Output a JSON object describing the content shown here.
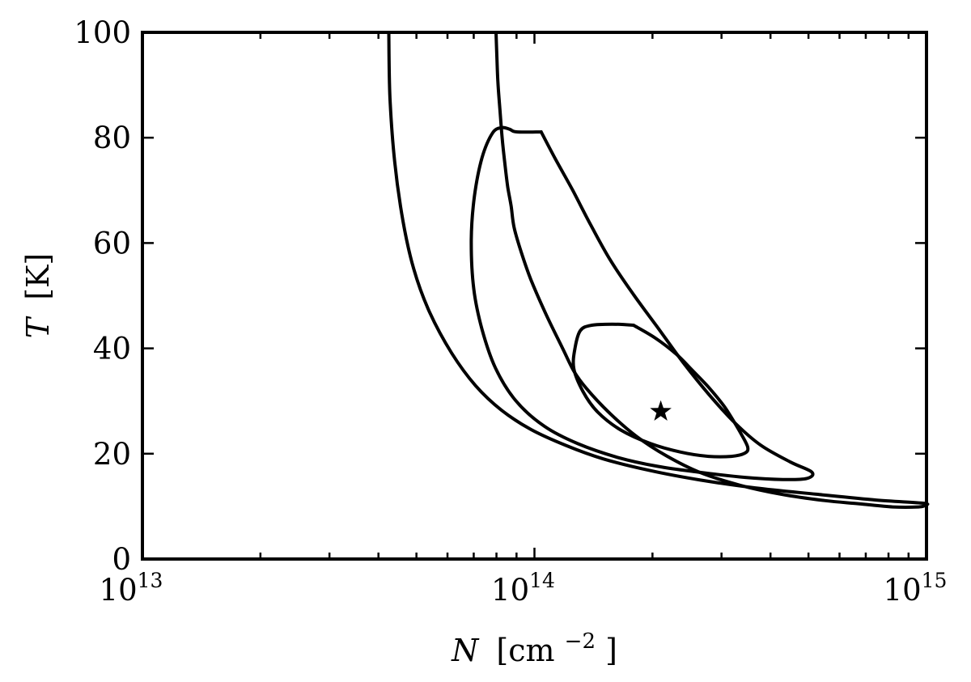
{
  "chart_data": {
    "type": "contour",
    "title": "",
    "x_axis": {
      "scale": "log",
      "range": [
        10000000000000.0,
        1000000000000000.0
      ],
      "tick_labels": [
        {
          "value": 10000000000000.0,
          "base": "10",
          "exponent": "13"
        },
        {
          "value": 100000000000000.0,
          "base": "10",
          "exponent": "14"
        },
        {
          "value": 1000000000000000.0,
          "base": "10",
          "exponent": "15"
        }
      ],
      "label": {
        "symbol": "N",
        "unit": "[cm",
        "unit_exponent": "−2",
        "unit_close": "]"
      }
    },
    "y_axis": {
      "scale": "linear",
      "range": [
        0,
        100
      ],
      "ticks": [
        0,
        20,
        40,
        60,
        80,
        100
      ],
      "tick_labels": [
        "0",
        "20",
        "40",
        "60",
        "80",
        "100"
      ],
      "label": {
        "symbol": "T",
        "unit": "[K]"
      }
    },
    "grid": false,
    "legend": "none",
    "line_color": "#000000",
    "series": [
      {
        "type": "contour",
        "points": [
          [
            179000000000000.0,
            44.4
          ],
          [
            203000000000000.0,
            42.0
          ],
          [
            230000000000000.0,
            38.9
          ],
          [
            253000000000000.0,
            35.8
          ],
          [
            279000000000000.0,
            32.5
          ],
          [
            304000000000000.0,
            29.1
          ],
          [
            322000000000000.0,
            26.2
          ],
          [
            337000000000000.0,
            23.7
          ],
          [
            350000000000000.0,
            21.2
          ],
          [
            344000000000000.0,
            20.1
          ],
          [
            318000000000000.0,
            19.5
          ],
          [
            278000000000000.0,
            19.5
          ],
          [
            236000000000000.0,
            20.3
          ],
          [
            198000000000000.0,
            21.9
          ],
          [
            166000000000000.0,
            24.5
          ],
          [
            145000000000000.0,
            27.9
          ],
          [
            133000000000000.0,
            31.8
          ],
          [
            126000000000000.0,
            36.2
          ],
          [
            127000000000000.0,
            40.2
          ],
          [
            131000000000000.0,
            43.4
          ],
          [
            140000000000000.0,
            44.4
          ],
          [
            158000000000000.0,
            44.6
          ],
          [
            179000000000000.0,
            44.4
          ]
        ]
      },
      {
        "type": "contour",
        "points": [
          [
            104000000000000.0,
            81.1
          ],
          [
            113000000000000.0,
            76.0
          ],
          [
            125000000000000.0,
            70.1
          ],
          [
            139000000000000.0,
            63.5
          ],
          [
            156000000000000.0,
            56.8
          ],
          [
            179000000000000.0,
            50.2
          ],
          [
            207000000000000.0,
            43.8
          ],
          [
            239000000000000.0,
            37.4
          ],
          [
            279000000000000.0,
            31.2
          ],
          [
            325000000000000.0,
            25.8
          ],
          [
            378000000000000.0,
            21.6
          ],
          [
            450000000000000.0,
            18.4
          ],
          [
            510000000000000.0,
            16.5
          ],
          [
            495000000000000.0,
            15.3
          ],
          [
            430000000000000.0,
            15.1
          ],
          [
            345000000000000.0,
            15.5
          ],
          [
            262000000000000.0,
            16.5
          ],
          [
            206000000000000.0,
            17.6
          ],
          [
            163000000000000.0,
            19.3
          ],
          [
            129000000000000.0,
            21.9
          ],
          [
            106000000000000.0,
            25.2
          ],
          [
            89500000000000.0,
            30.1
          ],
          [
            79500000000000.0,
            36.3
          ],
          [
            73500000000000.0,
            43.6
          ],
          [
            70000000000000.0,
            51.3
          ],
          [
            69000000000000.0,
            60.6
          ],
          [
            70300000000000.0,
            68.9
          ],
          [
            73500000000000.0,
            76.2
          ],
          [
            78200000000000.0,
            80.9
          ],
          [
            82500000000000.0,
            81.9
          ],
          [
            86500000000000.0,
            81.6
          ],
          [
            90000000000000.0,
            81.1
          ],
          [
            104000000000000.0,
            81.1
          ]
        ]
      },
      {
        "type": "contour",
        "points": [
          [
            42500000000000.0,
            100.0
          ],
          [
            42800000000000.0,
            87.6
          ],
          [
            44000000000000.0,
            75.4
          ],
          [
            46200000000000.0,
            64.2
          ],
          [
            49200000000000.0,
            55.1
          ],
          [
            54000000000000.0,
            46.9
          ],
          [
            61500000000000.0,
            39.1
          ],
          [
            70800000000000.0,
            32.9
          ],
          [
            82300000000000.0,
            28.3
          ],
          [
            98000000000000.0,
            24.6
          ],
          [
            120000000000000.0,
            21.6
          ],
          [
            150000000000000.0,
            19.0
          ],
          [
            197000000000000.0,
            16.8
          ],
          [
            265000000000000.0,
            15.0
          ],
          [
            366000000000000.0,
            13.5
          ],
          [
            524000000000000.0,
            12.3
          ],
          [
            744000000000000.0,
            11.2
          ],
          [
            982000000000000.0,
            10.6
          ],
          [
            990000000000000.0,
            10.2
          ],
          [
            955000000000000.0,
            9.9
          ],
          [
            820000000000000.0,
            9.9
          ],
          [
            670000000000000.0,
            10.5
          ],
          [
            549000000000000.0,
            11.1
          ],
          [
            426000000000000.0,
            12.3
          ],
          [
            335000000000000.0,
            14.0
          ],
          [
            265000000000000.0,
            16.4
          ],
          [
            217000000000000.0,
            19.6
          ],
          [
            182000000000000.0,
            23.3
          ],
          [
            156000000000000.0,
            27.6
          ],
          [
            136000000000000.0,
            32.3
          ],
          [
            126000000000000.0,
            35.7
          ],
          [
            118000000000000.0,
            40.0
          ],
          [
            107000000000000.0,
            46.5
          ],
          [
            98000000000000.0,
            53.0
          ],
          [
            92500000000000.0,
            58.3
          ],
          [
            88700000000000.0,
            63.0
          ],
          [
            87200000000000.0,
            67.0
          ],
          [
            85500000000000.0,
            70.6
          ],
          [
            84200000000000.0,
            74.6
          ],
          [
            82800000000000.0,
            79.6
          ],
          [
            81700000000000.0,
            85.0
          ],
          [
            80700000000000.0,
            90.4
          ],
          [
            80200000000000.0,
            95.2
          ],
          [
            79800000000000.0,
            100.0
          ]
        ]
      }
    ],
    "best_fit_marker": {
      "symbol": "star",
      "x": 210000000000000.0,
      "y": 28.0
    }
  }
}
